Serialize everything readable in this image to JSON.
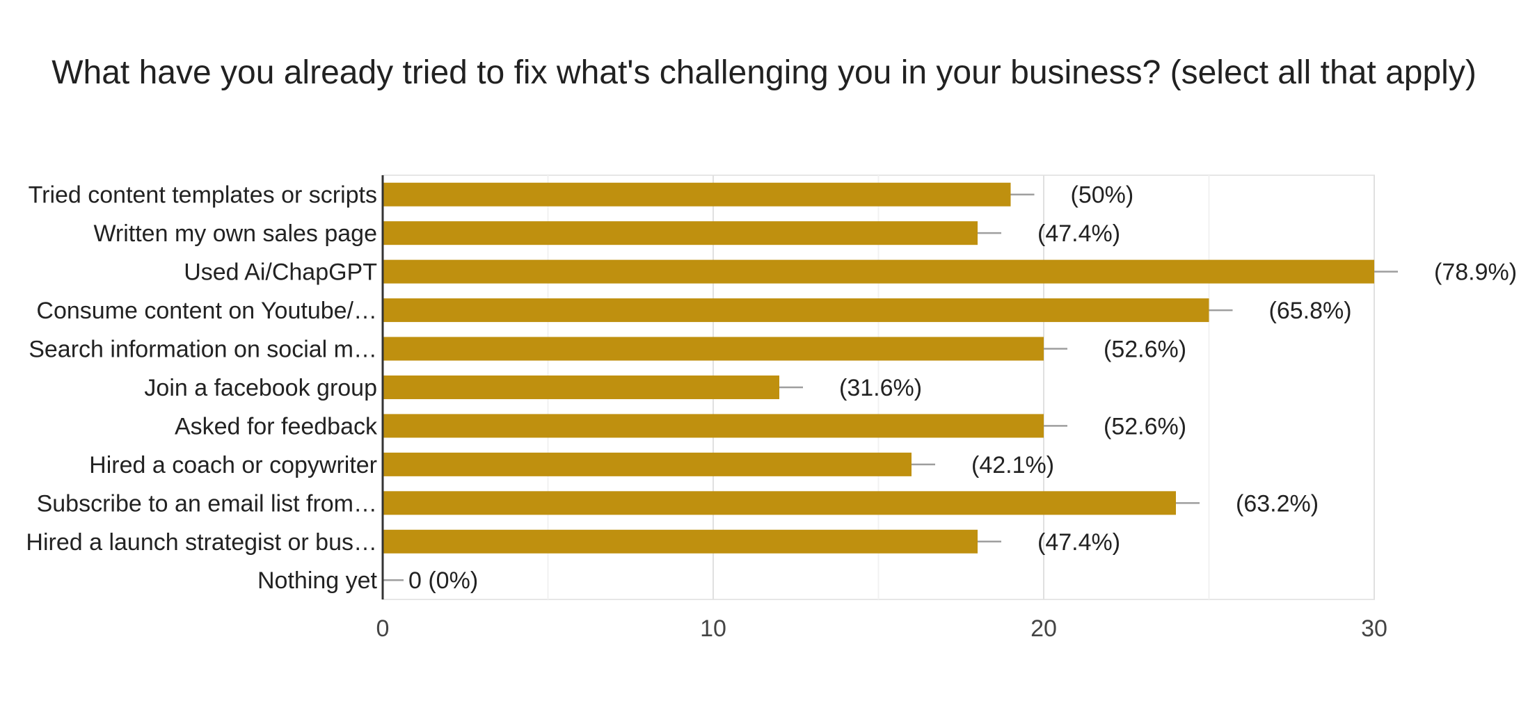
{
  "chart_data": {
    "type": "bar",
    "orientation": "horizontal",
    "title": "What have you already tried to fix what's challenging you in your business? (select all that apply)",
    "categories": [
      "Tried content templates or scripts",
      "Written my own sales page",
      "Used Ai/ChapGPT",
      "Consume content on Youtube/…",
      "Search information on social m…",
      "Join a facebook group",
      "Asked for feedback",
      "Hired a coach or copywriter",
      "Subscribe to an email list from…",
      "Hired a launch strategist or bus…",
      "Nothing yet"
    ],
    "values": [
      19,
      18,
      30,
      25,
      20,
      12,
      20,
      16,
      24,
      18,
      0
    ],
    "value_labels": [
      "(50%)",
      "(47.4%)",
      "(78.9%)",
      "(65.8%)",
      "(52.6%)",
      "(31.6%)",
      "(52.6%)",
      "(42.1%)",
      "(63.2%)",
      "(47.4%)",
      "0 (0%)"
    ],
    "xlim": [
      0,
      30
    ],
    "xticks": [
      0,
      10,
      20,
      30
    ],
    "grid": true,
    "bar_color": "#bf900f"
  }
}
